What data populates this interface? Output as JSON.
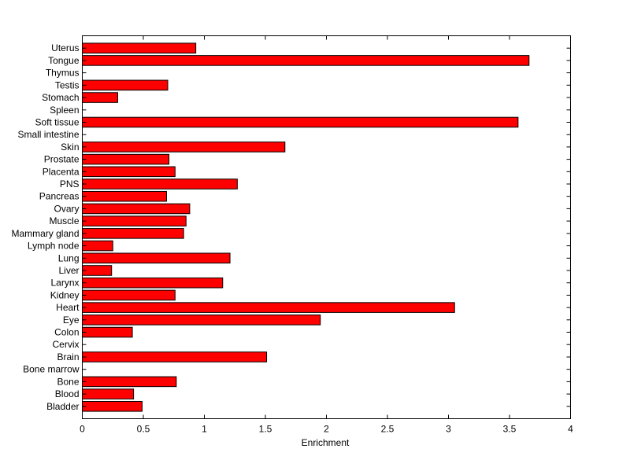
{
  "chart_data": {
    "type": "bar",
    "orientation": "horizontal",
    "xlabel": "Enrichment",
    "ylabel": "",
    "title": "",
    "xlim": [
      0,
      4
    ],
    "xticks": [
      0,
      0.5,
      1,
      1.5,
      2,
      2.5,
      3,
      3.5,
      4
    ],
    "xtick_labels": [
      "0",
      "0.5",
      "1",
      "1.5",
      "2",
      "2.5",
      "3",
      "3.5",
      "4"
    ],
    "grid": false,
    "bar_color": "#ff0000",
    "edge_color": "#000000",
    "categories": [
      "Bladder",
      "Blood",
      "Bone",
      "Bone marrow",
      "Brain",
      "Cervix",
      "Colon",
      "Eye",
      "Heart",
      "Kidney",
      "Larynx",
      "Liver",
      "Lung",
      "Lymph node",
      "Mammary gland",
      "Muscle",
      "Ovary",
      "Pancreas",
      "PNS",
      "Placenta",
      "Prostate",
      "Skin",
      "Small intestine",
      "Soft tissue",
      "Spleen",
      "Stomach",
      "Testis",
      "Thymus",
      "Tongue",
      "Uterus"
    ],
    "values": [
      0.49,
      0.42,
      0.77,
      0,
      1.51,
      0,
      0.41,
      1.95,
      3.05,
      0.76,
      1.15,
      0.24,
      1.21,
      0.25,
      0.83,
      0.85,
      0.88,
      0.69,
      1.27,
      0.76,
      0.71,
      1.66,
      0,
      3.57,
      0,
      0.29,
      0.7,
      0,
      3.66,
      0.93
    ]
  }
}
